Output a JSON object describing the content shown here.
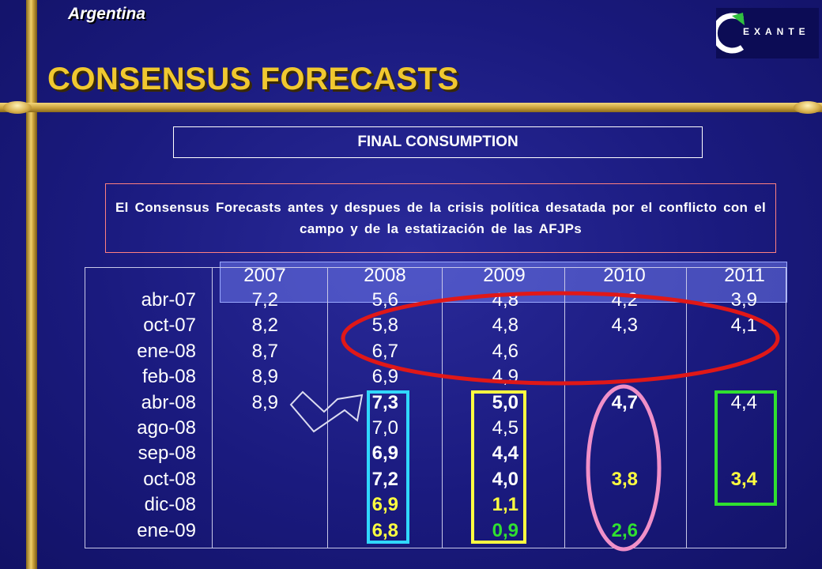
{
  "header": {
    "country": "Argentina",
    "title": "CONSENSUS FORECASTS",
    "logo_text": "EXANTE"
  },
  "section_title": "FINAL CONSUMPTION",
  "description": "El Consensus Forecasts antes y despues de la crisis política desatada por el conflicto con el campo y de la estatización de las AFJPs",
  "table": {
    "years": [
      "2007",
      "2008",
      "2009",
      "2010",
      "2011"
    ],
    "rows": [
      {
        "label": "abr-07",
        "values": [
          "7,2",
          "5,6",
          "4,8",
          "4,2",
          "3,9"
        ]
      },
      {
        "label": "oct-07",
        "values": [
          "8,2",
          "5,8",
          "4,8",
          "4,3",
          "4,1"
        ]
      },
      {
        "label": "ene-08",
        "values": [
          "8,7",
          "6,7",
          "4,6",
          "",
          ""
        ]
      },
      {
        "label": "feb-08",
        "values": [
          "8,9",
          "6,9",
          "4,9",
          "",
          ""
        ]
      },
      {
        "label": "abr-08",
        "values": [
          "8,9",
          "7,3",
          "5,0",
          "4,7",
          "4,4"
        ]
      },
      {
        "label": "ago-08",
        "values": [
          "",
          "7,0",
          "4,5",
          "",
          ""
        ]
      },
      {
        "label": "sep-08",
        "values": [
          "",
          "6,9",
          "4,4",
          "",
          ""
        ]
      },
      {
        "label": "oct-08",
        "values": [
          "",
          "7,2",
          "4,0",
          "3,8",
          "3,4"
        ]
      },
      {
        "label": "dic-08",
        "values": [
          "",
          "6,9",
          "1,1",
          "",
          ""
        ]
      },
      {
        "label": "ene-09",
        "values": [
          "",
          "6,8",
          "0,9",
          "2,6",
          ""
        ]
      }
    ]
  },
  "colors": {
    "background": "#1a1a7e",
    "gold": "#f0c830",
    "ellipse_red": "#e01818",
    "ellipse_pink": "#f090c8",
    "box_cyan": "#30d8ff",
    "box_yellow": "#ffff40",
    "box_green": "#30e030",
    "value_yellow": "#ffff40",
    "value_green": "#30e030"
  }
}
